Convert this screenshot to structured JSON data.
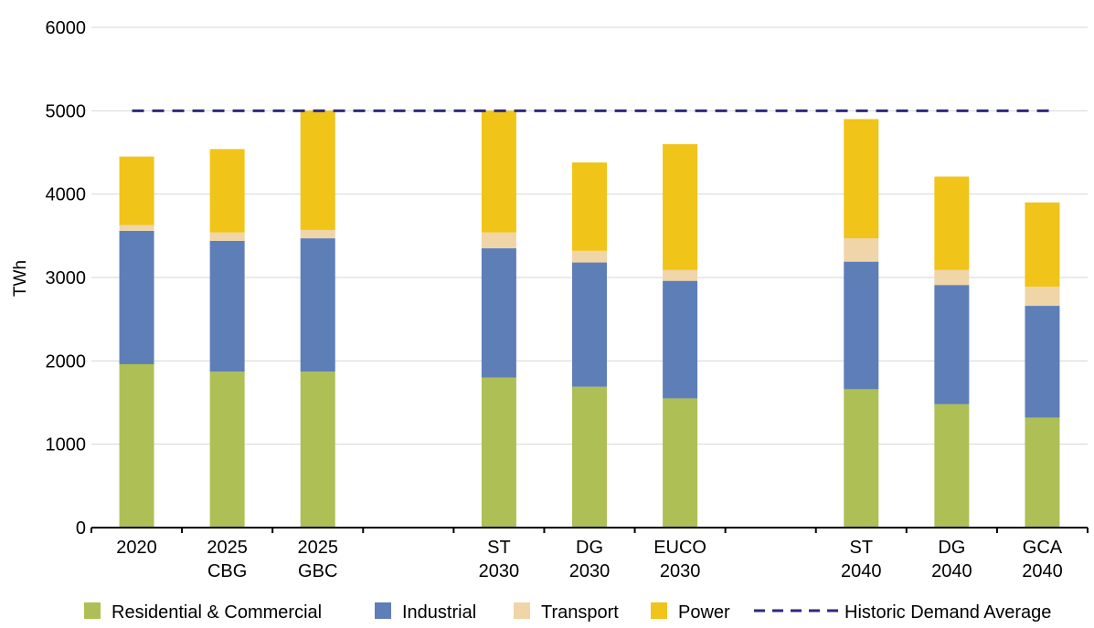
{
  "chart_data": {
    "type": "bar",
    "stacked": true,
    "title": "",
    "xlabel": "",
    "ylabel": "TWh",
    "ylim": [
      0,
      6000
    ],
    "yticks": [
      0,
      1000,
      2000,
      3000,
      4000,
      5000,
      6000
    ],
    "grid": "horizontal",
    "legend_position": "bottom",
    "categories": [
      [
        "2020"
      ],
      [
        "2025",
        "CBG"
      ],
      [
        "2025",
        "GBC"
      ],
      [],
      [
        "ST",
        "2030"
      ],
      [
        "DG",
        "2030"
      ],
      [
        "EUCO",
        "2030"
      ],
      [],
      [
        "ST",
        "2040"
      ],
      [
        "DG",
        "2040"
      ],
      [
        "GCA",
        "2040"
      ]
    ],
    "series": [
      {
        "name": "Residential & Commercial",
        "color": "#AEBF56",
        "values": [
          1960,
          1870,
          1870,
          null,
          1800,
          1690,
          1550,
          null,
          1660,
          1480,
          1320
        ]
      },
      {
        "name": "Industrial",
        "color": "#5E7EB8",
        "values": [
          1600,
          1570,
          1600,
          null,
          1550,
          1490,
          1410,
          null,
          1530,
          1430,
          1340
        ]
      },
      {
        "name": "Transport",
        "color": "#EFD5A8",
        "values": [
          70,
          100,
          100,
          null,
          190,
          140,
          130,
          null,
          280,
          180,
          230
        ]
      },
      {
        "name": "Power",
        "color": "#F0C419",
        "values": [
          820,
          1000,
          1430,
          null,
          1460,
          1060,
          1510,
          null,
          1430,
          1120,
          1010
        ]
      }
    ],
    "reference_line": {
      "name": "Historic Demand Average",
      "value": 5000,
      "color": "#2E2A7A",
      "style": "dashed"
    }
  }
}
